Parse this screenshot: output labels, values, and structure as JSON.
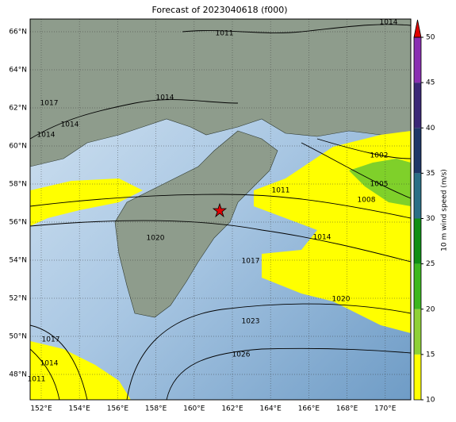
{
  "title": "Forecast of 2023040618 (f000)",
  "map": {
    "lat_labels": [
      "66°N",
      "64°N",
      "62°N",
      "60°N",
      "58°N",
      "56°N",
      "54°N",
      "52°N",
      "50°N",
      "48°N"
    ],
    "lon_labels": [
      "152°E",
      "154°E",
      "156°E",
      "158°E",
      "160°E",
      "162°E",
      "164°E",
      "166°E",
      "168°E",
      "170°E"
    ],
    "contour_labels": [
      "1011",
      "1014",
      "1014",
      "1017",
      "1014",
      "1014",
      "1002",
      "1005",
      "1008",
      "1011",
      "1014",
      "1020",
      "1017",
      "1020",
      "1023",
      "1026",
      "1017",
      "1014",
      "1011"
    ]
  },
  "colorbar": {
    "label": "10 m wind speed (m/s)",
    "range": [
      10,
      50
    ],
    "ticks": [
      10,
      15,
      20,
      25,
      30,
      35,
      40,
      45,
      50
    ],
    "colors": [
      "#ffff00",
      "#8fd136",
      "#3cb81e",
      "#0f8f14",
      "#2a6f86",
      "#1e3768",
      "#3b2777",
      "#8a2fb2"
    ],
    "extend_color": "#e00000"
  }
}
